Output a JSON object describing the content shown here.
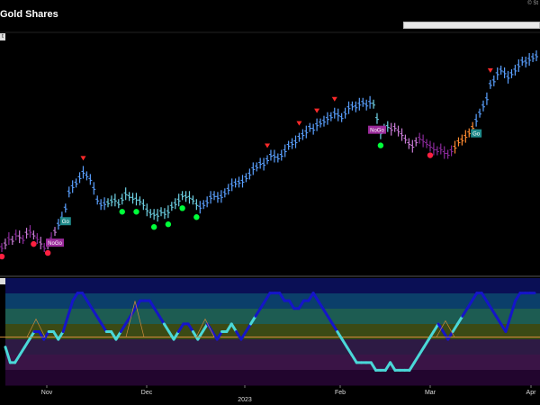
{
  "header": {
    "title": "Gold Shares",
    "copyright": "© St",
    "panel_tag": "t"
  },
  "colors": {
    "background": "#000000",
    "go_strong": "#5aa0ff",
    "go_weak": "#6fd3e6",
    "nogo_strong": "#8a2a9a",
    "nogo_weak": "#c97cd6",
    "neutral": "#b0b0b0",
    "go_trend_up_arrow": "#ff2a2a",
    "go_dot": "#00ff3a",
    "nogo_dot": "#ff2040",
    "osc_high": "#1515c8",
    "osc_low": "#4ad8d8",
    "zero_line": "#d08a3a"
  },
  "chart_data": [
    {
      "type": "bar",
      "title": "Gold Shares",
      "x_ticks": [
        "Nov",
        "Dec",
        "2023",
        "Feb",
        "Mar",
        "Apr"
      ],
      "series": [
        {
          "values": [
            252,
            256,
            262,
            260,
            266,
            264,
            261,
            268,
            270,
            266,
            262,
            257,
            252,
            256,
            262,
            270,
            278,
            285,
            296,
            314,
            320,
            324,
            330,
            336,
            332,
            328,
            318,
            305,
            300,
            301,
            302,
            304,
            305,
            301,
            306,
            312,
            309,
            307,
            306,
            304,
            300,
            294,
            290,
            289,
            288,
            292,
            290,
            292,
            298,
            301,
            305,
            310,
            309,
            308,
            305,
            300,
            297,
            300,
            303,
            308,
            310,
            308,
            309,
            313,
            317,
            322,
            324,
            325,
            326,
            330,
            334,
            340,
            342,
            346,
            345,
            350,
            355,
            354,
            352,
            355,
            360,
            366,
            368,
            370,
            375,
            378,
            381,
            386,
            384,
            389,
            391,
            393,
            396,
            398,
            402,
            400,
            397,
            402,
            408,
            410,
            409,
            412,
            414,
            411,
            414,
            412,
            396,
            380,
            385,
            387,
            384,
            386,
            382,
            378,
            373,
            368,
            365,
            370,
            374,
            371,
            368,
            365,
            362,
            360,
            362,
            358,
            356,
            360,
            364,
            370,
            372,
            376,
            380,
            386,
            394,
            402,
            410,
            418,
            434,
            438,
            446,
            450,
            447,
            442,
            446,
            450,
            455,
            460,
            459,
            462,
            464,
            466
          ]
        }
      ],
      "signals": {
        "go_labels": [
          {
            "x_index": 18,
            "text": "Go"
          },
          {
            "x_index": 134,
            "text": "Go"
          }
        ],
        "nogo_labels": [
          {
            "x_index": 15,
            "text": "NoGo"
          },
          {
            "x_index": 106,
            "text": "NoGo"
          }
        ],
        "trend_arrows_above": [
          23,
          75,
          84,
          89,
          94,
          138
        ],
        "go_dots_below": [
          34,
          38,
          43,
          47,
          51,
          55,
          107
        ],
        "nogo_dots_below": [
          0,
          9,
          13,
          121
        ]
      }
    },
    {
      "type": "line",
      "title": "",
      "x_ticks": [
        "Nov",
        "Dec",
        "2023",
        "Feb",
        "Mar",
        "Apr"
      ],
      "series": [
        {
          "values": [
            -2,
            -4,
            -4,
            -3,
            -2,
            -1,
            0,
            0,
            -1,
            0,
            0,
            -1,
            0,
            2,
            4,
            5,
            5,
            4,
            3,
            2,
            1,
            0,
            0,
            -1,
            0,
            1,
            2,
            3,
            4,
            4,
            4,
            3,
            2,
            1,
            0,
            -1,
            0,
            1,
            1,
            0,
            -1,
            0,
            1,
            0,
            -1,
            0,
            0,
            1,
            0,
            -1,
            0,
            1,
            2,
            3,
            4,
            5,
            5,
            5,
            4,
            4,
            3,
            3,
            4,
            4,
            5,
            4,
            3,
            2,
            1,
            0,
            -1,
            -2,
            -3,
            -4,
            -4,
            -4,
            -4,
            -5,
            -5,
            -5,
            -4,
            -5,
            -5,
            -5,
            -5,
            -4,
            -3,
            -2,
            -1,
            0,
            1,
            0,
            -1,
            0,
            1,
            2,
            3,
            4,
            5,
            5,
            4,
            3,
            2,
            1,
            0,
            2,
            4,
            5,
            5,
            5,
            5
          ]
        }
      ],
      "ylim": [
        -6,
        6
      ]
    }
  ]
}
